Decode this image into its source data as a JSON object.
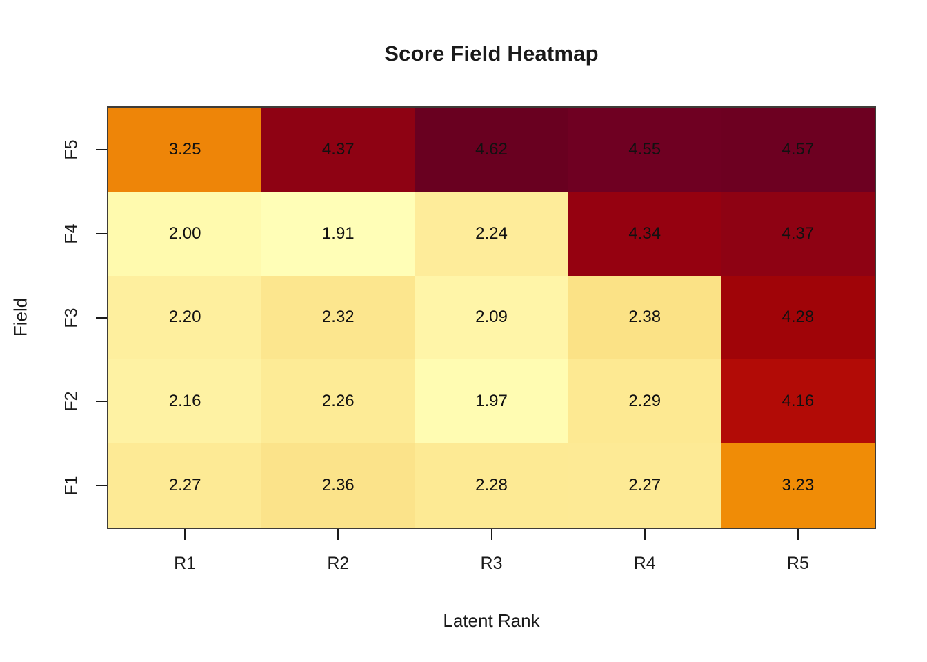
{
  "title": "Score Field Heatmap",
  "x_axis": {
    "label": "Latent Rank",
    "ticks": [
      "R1",
      "R2",
      "R3",
      "R4",
      "R5"
    ]
  },
  "y_axis": {
    "label": "Field",
    "ticks_top_to_bottom": [
      "F5",
      "F4",
      "F3",
      "F2",
      "F1"
    ]
  },
  "colors": {
    "border": "#3f3c38",
    "text": "#111111",
    "background": "#ffffff"
  },
  "chart_data": {
    "type": "heatmap",
    "title": "Score Field Heatmap",
    "xlabel": "Latent Rank",
    "ylabel": "Field",
    "x_categories": [
      "R1",
      "R2",
      "R3",
      "R4",
      "R5"
    ],
    "y_categories_top_to_bottom": [
      "F5",
      "F4",
      "F3",
      "F2",
      "F1"
    ],
    "value_range_observed": [
      1.91,
      4.62
    ],
    "legend": false,
    "grid": false,
    "rows": [
      {
        "field": "F5",
        "cells": [
          {
            "label": "3.25",
            "value": 3.25,
            "color": "#EE8508"
          },
          {
            "label": "4.37",
            "value": 4.37,
            "color": "#8E0213"
          },
          {
            "label": "4.62",
            "value": 4.62,
            "color": "#690020"
          },
          {
            "label": "4.55",
            "value": 4.55,
            "color": "#6F0022"
          },
          {
            "label": "4.57",
            "value": 4.57,
            "color": "#6D0021"
          }
        ]
      },
      {
        "field": "F4",
        "cells": [
          {
            "label": "2.00",
            "value": 2.0,
            "color": "#FFFAAE"
          },
          {
            "label": "1.91",
            "value": 1.91,
            "color": "#FFFEB7"
          },
          {
            "label": "2.24",
            "value": 2.24,
            "color": "#FEEC9A"
          },
          {
            "label": "4.34",
            "value": 4.34,
            "color": "#950110"
          },
          {
            "label": "4.37",
            "value": 4.37,
            "color": "#8E0213"
          }
        ]
      },
      {
        "field": "F3",
        "cells": [
          {
            "label": "2.20",
            "value": 2.2,
            "color": "#FEEF9E"
          },
          {
            "label": "2.32",
            "value": 2.32,
            "color": "#FCE68E"
          },
          {
            "label": "2.09",
            "value": 2.09,
            "color": "#FFF5A8"
          },
          {
            "label": "2.38",
            "value": 2.38,
            "color": "#FBE286"
          },
          {
            "label": "4.28",
            "value": 4.28,
            "color": "#A00408"
          }
        ]
      },
      {
        "field": "F2",
        "cells": [
          {
            "label": "2.16",
            "value": 2.16,
            "color": "#FEF2A3"
          },
          {
            "label": "2.26",
            "value": 2.26,
            "color": "#FDEB96"
          },
          {
            "label": "1.97",
            "value": 1.97,
            "color": "#FFFCB2"
          },
          {
            "label": "2.29",
            "value": 2.29,
            "color": "#FDE992"
          },
          {
            "label": "4.16",
            "value": 4.16,
            "color": "#B20B06"
          }
        ]
      },
      {
        "field": "F1",
        "cells": [
          {
            "label": "2.27",
            "value": 2.27,
            "color": "#FDEA95"
          },
          {
            "label": "2.36",
            "value": 2.36,
            "color": "#FBE38A"
          },
          {
            "label": "2.28",
            "value": 2.28,
            "color": "#FDEA94"
          },
          {
            "label": "2.27",
            "value": 2.27,
            "color": "#FDEA95"
          },
          {
            "label": "3.23",
            "value": 3.23,
            "color": "#F08C06"
          }
        ]
      }
    ]
  }
}
